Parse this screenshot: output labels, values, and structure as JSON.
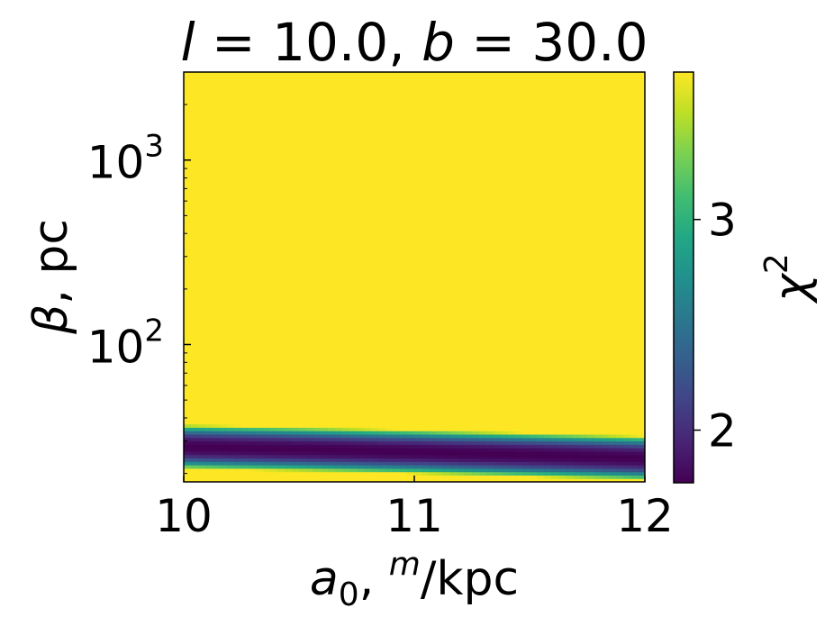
{
  "chart_data": {
    "type": "heatmap",
    "title": "l = 10.0, b = 30.0",
    "title_parts": {
      "l_symbol": "l",
      "l_value": " = 10.0, ",
      "b_symbol": "b",
      "b_value": " = 30.0"
    },
    "xlabel": "a₀, m/kpc",
    "xlabel_parts": {
      "a": "a",
      "sub": "0",
      "comma": ", ",
      "sup": "m",
      "unit": "/kpc"
    },
    "ylabel": "β, pc",
    "ylabel_parts": {
      "beta": "β",
      "unit": ", pc"
    },
    "x_range": [
      10,
      12
    ],
    "x_ticks": [
      {
        "value": 10,
        "label": "10"
      },
      {
        "value": 11,
        "label": "11"
      },
      {
        "value": 12,
        "label": "12"
      }
    ],
    "y_scale": "log",
    "y_range": [
      18,
      3000
    ],
    "y_ticks": [
      {
        "value": 100,
        "base": "10",
        "exp": "2"
      },
      {
        "value": 1000,
        "base": "10",
        "exp": "3"
      }
    ],
    "colormap": "viridis",
    "colorbar": {
      "label_symbol": "χ",
      "label_exp": "2",
      "range": [
        1.75,
        3.7
      ],
      "ticks": [
        {
          "value": 2,
          "label": "2"
        },
        {
          "value": 3,
          "label": "3"
        }
      ]
    },
    "valley": {
      "description_x": [
        10,
        10.5,
        11,
        11.5,
        12
      ],
      "center_beta_pc": [
        28.0,
        27.2,
        26.3,
        25.3,
        24.3
      ],
      "min_chi2": 1.75,
      "plateau_chi2": 3.7
    }
  }
}
